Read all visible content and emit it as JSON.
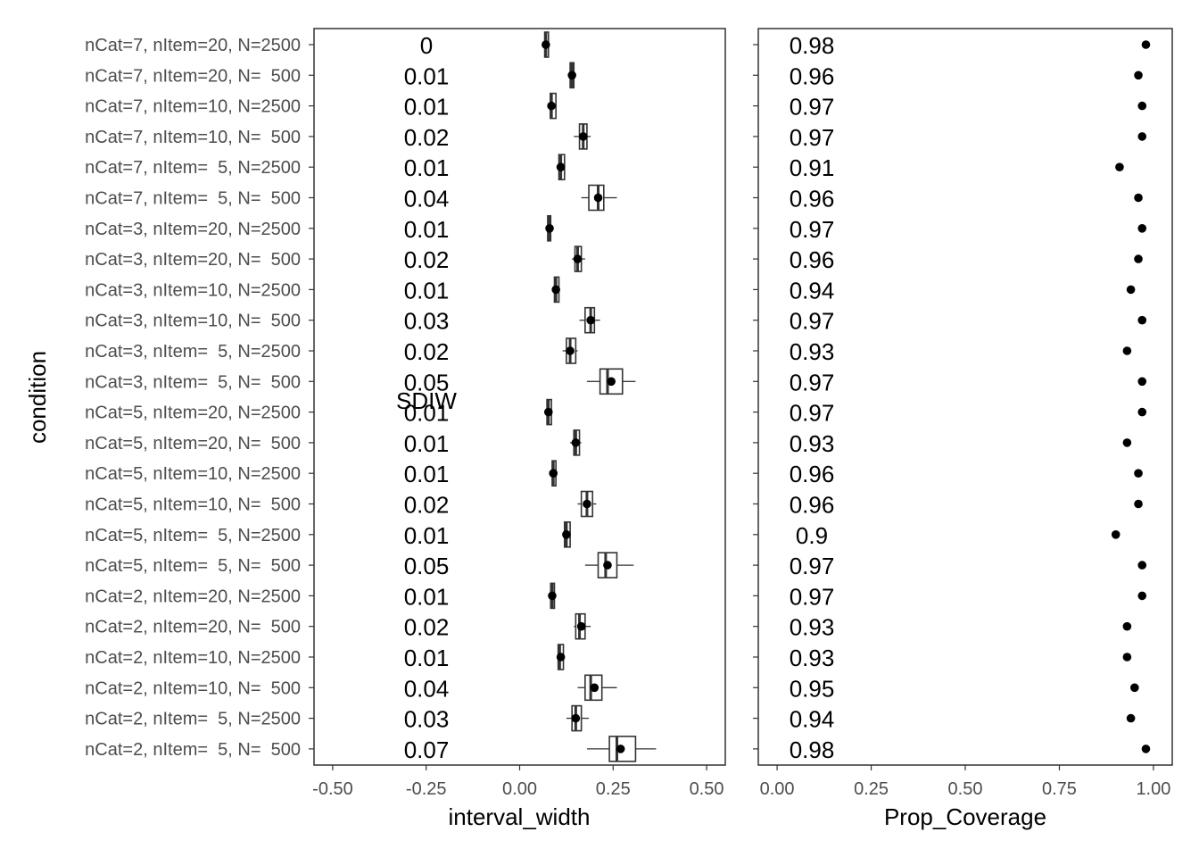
{
  "chart_data": {
    "type": "boxplot",
    "ylabel": "condition",
    "y_categories": [
      "nCat=7, nItem=20, N=2500",
      "nCat=7, nItem=20, N=  500",
      "nCat=7, nItem=10, N=2500",
      "nCat=7, nItem=10, N=  500",
      "nCat=7, nItem=  5, N=2500",
      "nCat=7, nItem=  5, N=  500",
      "nCat=3, nItem=20, N=2500",
      "nCat=3, nItem=20, N=  500",
      "nCat=3, nItem=10, N=2500",
      "nCat=3, nItem=10, N=  500",
      "nCat=3, nItem=  5, N=2500",
      "nCat=3, nItem=  5, N=  500",
      "nCat=5, nItem=20, N=2500",
      "nCat=5, nItem=20, N=  500",
      "nCat=5, nItem=10, N=2500",
      "nCat=5, nItem=10, N=  500",
      "nCat=5, nItem=  5, N=2500",
      "nCat=5, nItem=  5, N=  500",
      "nCat=2, nItem=20, N=2500",
      "nCat=2, nItem=20, N=  500",
      "nCat=2, nItem=10, N=2500",
      "nCat=2, nItem=10, N=  500",
      "nCat=2, nItem=  5, N=2500",
      "nCat=2, nItem=  5, N=  500"
    ],
    "left_panel": {
      "xlabel": "interval_width",
      "xlim": [
        -0.55,
        0.55
      ],
      "xticks": [
        "-0.50",
        "-0.25",
        "0.00",
        "0.25",
        "0.50"
      ],
      "xtick_values": [
        -0.5,
        -0.25,
        0,
        0.25,
        0.5
      ],
      "annotation_title": "SDIW",
      "sdiw_labels": [
        "0",
        "0.01",
        "0.01",
        "0.02",
        "0.01",
        "0.04",
        "0.01",
        "0.02",
        "0.01",
        "0.03",
        "0.02",
        "0.05",
        "0.01",
        "0.01",
        "0.01",
        "0.02",
        "0.01",
        "0.05",
        "0.01",
        "0.02",
        "0.01",
        "0.04",
        "0.03",
        "0.07"
      ],
      "boxes": [
        {
          "wlo": 0.067,
          "q1": 0.067,
          "med": 0.07,
          "q3": 0.077,
          "whi": 0.077,
          "mean": 0.07
        },
        {
          "wlo": 0.13,
          "q1": 0.135,
          "med": 0.14,
          "q3": 0.145,
          "whi": 0.15,
          "mean": 0.14
        },
        {
          "wlo": 0.08,
          "q1": 0.082,
          "med": 0.085,
          "q3": 0.097,
          "whi": 0.097,
          "mean": 0.085
        },
        {
          "wlo": 0.145,
          "q1": 0.16,
          "med": 0.17,
          "q3": 0.18,
          "whi": 0.19,
          "mean": 0.17
        },
        {
          "wlo": 0.105,
          "q1": 0.105,
          "med": 0.11,
          "q3": 0.12,
          "whi": 0.12,
          "mean": 0.11
        },
        {
          "wlo": 0.165,
          "q1": 0.185,
          "med": 0.21,
          "q3": 0.225,
          "whi": 0.26,
          "mean": 0.21
        },
        {
          "wlo": 0.075,
          "q1": 0.075,
          "med": 0.08,
          "q3": 0.083,
          "whi": 0.083,
          "mean": 0.08
        },
        {
          "wlo": 0.14,
          "q1": 0.148,
          "med": 0.155,
          "q3": 0.165,
          "whi": 0.175,
          "mean": 0.155
        },
        {
          "wlo": 0.09,
          "q1": 0.093,
          "med": 0.097,
          "q3": 0.105,
          "whi": 0.105,
          "mean": 0.097
        },
        {
          "wlo": 0.16,
          "q1": 0.175,
          "med": 0.19,
          "q3": 0.2,
          "whi": 0.215,
          "mean": 0.19
        },
        {
          "wlo": 0.115,
          "q1": 0.125,
          "med": 0.135,
          "q3": 0.15,
          "whi": 0.155,
          "mean": 0.135
        },
        {
          "wlo": 0.18,
          "q1": 0.215,
          "med": 0.235,
          "q3": 0.275,
          "whi": 0.31,
          "mean": 0.245
        },
        {
          "wlo": 0.07,
          "q1": 0.073,
          "med": 0.077,
          "q3": 0.085,
          "whi": 0.085,
          "mean": 0.077
        },
        {
          "wlo": 0.135,
          "q1": 0.145,
          "med": 0.15,
          "q3": 0.16,
          "whi": 0.165,
          "mean": 0.15
        },
        {
          "wlo": 0.085,
          "q1": 0.087,
          "med": 0.09,
          "q3": 0.097,
          "whi": 0.097,
          "mean": 0.09
        },
        {
          "wlo": 0.155,
          "q1": 0.165,
          "med": 0.18,
          "q3": 0.195,
          "whi": 0.205,
          "mean": 0.18
        },
        {
          "wlo": 0.12,
          "q1": 0.12,
          "med": 0.125,
          "q3": 0.135,
          "whi": 0.135,
          "mean": 0.125
        },
        {
          "wlo": 0.175,
          "q1": 0.21,
          "med": 0.23,
          "q3": 0.26,
          "whi": 0.305,
          "mean": 0.235
        },
        {
          "wlo": 0.083,
          "q1": 0.083,
          "med": 0.087,
          "q3": 0.093,
          "whi": 0.093,
          "mean": 0.087
        },
        {
          "wlo": 0.145,
          "q1": 0.15,
          "med": 0.16,
          "q3": 0.175,
          "whi": 0.19,
          "mean": 0.165
        },
        {
          "wlo": 0.1,
          "q1": 0.103,
          "med": 0.107,
          "q3": 0.117,
          "whi": 0.117,
          "mean": 0.11
        },
        {
          "wlo": 0.155,
          "q1": 0.175,
          "med": 0.19,
          "q3": 0.22,
          "whi": 0.26,
          "mean": 0.2
        },
        {
          "wlo": 0.125,
          "q1": 0.14,
          "med": 0.15,
          "q3": 0.165,
          "whi": 0.185,
          "mean": 0.15
        },
        {
          "wlo": 0.18,
          "q1": 0.24,
          "med": 0.26,
          "q3": 0.31,
          "whi": 0.365,
          "mean": 0.27
        }
      ]
    },
    "right_panel": {
      "xlabel": "Prop_Coverage",
      "xlim": [
        -0.05,
        1.05
      ],
      "xticks": [
        "0.00",
        "0.25",
        "0.50",
        "0.75",
        "1.00"
      ],
      "xtick_values": [
        0,
        0.25,
        0.5,
        0.75,
        1
      ],
      "coverage_labels": [
        "0.98",
        "0.96",
        "0.97",
        "0.97",
        "0.91",
        "0.96",
        "0.97",
        "0.96",
        "0.94",
        "0.97",
        "0.93",
        "0.97",
        "0.97",
        "0.93",
        "0.96",
        "0.96",
        "0.9",
        "0.97",
        "0.97",
        "0.93",
        "0.93",
        "0.95",
        "0.94",
        "0.98"
      ],
      "values": [
        0.98,
        0.96,
        0.97,
        0.97,
        0.91,
        0.96,
        0.97,
        0.96,
        0.94,
        0.97,
        0.93,
        0.97,
        0.97,
        0.93,
        0.96,
        0.96,
        0.9,
        0.97,
        0.97,
        0.93,
        0.93,
        0.95,
        0.94,
        0.98
      ]
    }
  }
}
